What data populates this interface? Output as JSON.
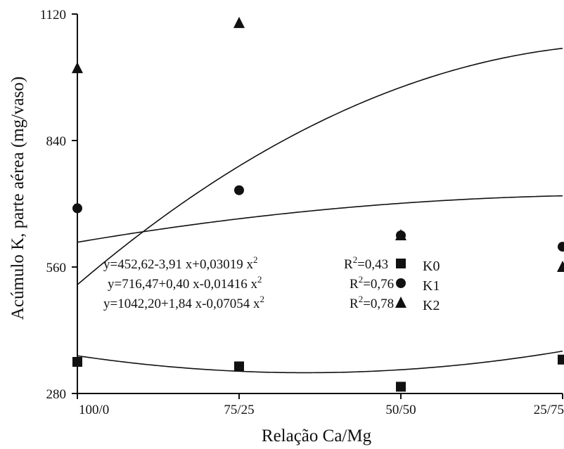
{
  "chart_data": {
    "type": "scatter",
    "xlabel": "Relação Ca/Mg",
    "ylabel": "Acúmulo K, parte aérea (mg/vaso)",
    "categories": [
      "100/0",
      "75/25",
      "50/50",
      "25/75"
    ],
    "x": [
      100,
      75,
      50,
      25
    ],
    "ylim": [
      280,
      1120
    ],
    "yticks": [
      280,
      560,
      840,
      1120
    ],
    "grid": false,
    "legend_position": "center-right",
    "series": [
      {
        "name": "K0",
        "marker": "square",
        "values": [
          350,
          340,
          295,
          355
        ],
        "equation": "y=452,62-3,91 x+0,03019 x",
        "r2": "R",
        "r2_value": "=0,43",
        "fit": {
          "a": 452.62,
          "b": -3.91,
          "c": 0.03019
        }
      },
      {
        "name": "K1",
        "marker": "circle",
        "values": [
          690,
          730,
          630,
          605
        ],
        "equation": "y=716,47+0,40 x-0,01416 x",
        "r2": "R",
        "r2_value": "=0,76",
        "fit": {
          "a": 716.47,
          "b": 0.4,
          "c": -0.01416
        }
      },
      {
        "name": "K2",
        "marker": "triangle",
        "values": [
          1000,
          1100,
          630,
          560
        ],
        "equation": "y=1042,20+1,84 x-0,07054 x",
        "r2": "R",
        "r2_value": "=0,78",
        "fit": {
          "a": 1042.2,
          "b": 1.84,
          "c": -0.07054
        }
      }
    ],
    "superscript": "2"
  }
}
